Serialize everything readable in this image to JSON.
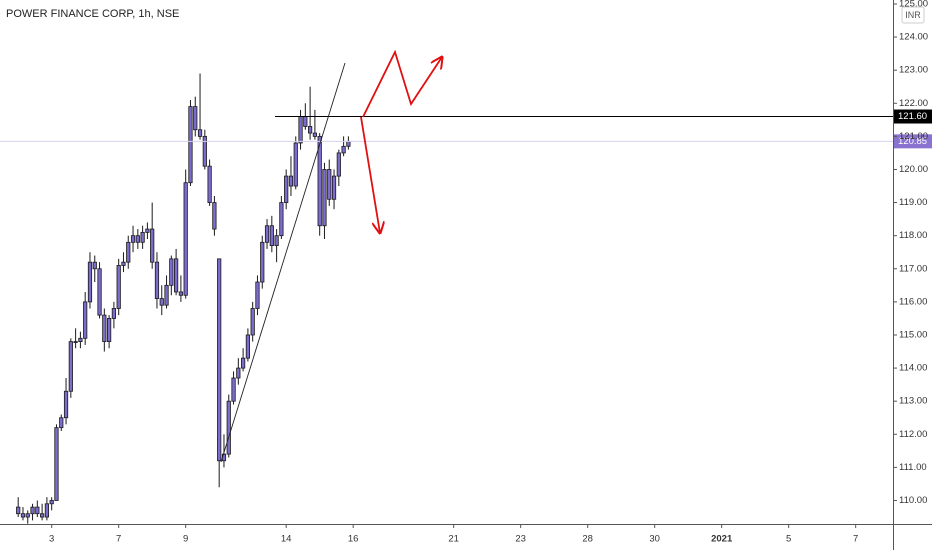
{
  "chart_data": {
    "type": "candlestick",
    "title": "POWER FINANCE CORP, 1h, NSE",
    "currency": "INR",
    "color": "#7e6ccc",
    "border_color": "#1a1a1a",
    "grid": false,
    "open": [
      109.8,
      109.6,
      109.5,
      109.6,
      109.8,
      109.6,
      109.5,
      109.9,
      110.0,
      112.2,
      112.5,
      113.3,
      114.8,
      114.8,
      114.9,
      116.0,
      117.2,
      117.0,
      115.6,
      114.8,
      115.5,
      115.8,
      117.1,
      117.2,
      117.8,
      118.0,
      117.8,
      118.1,
      118.2,
      117.2,
      116.1,
      115.9,
      116.5,
      117.3,
      116.3,
      116.2,
      119.6,
      121.9,
      121.2,
      121.0,
      120.1,
      119.0,
      117.3,
      111.2,
      111.4,
      113.0,
      113.7,
      114.0,
      114.3,
      115.0,
      115.8,
      116.6,
      117.8,
      118.3,
      117.7,
      118.0,
      119.0,
      119.8,
      119.5,
      120.8,
      121.6,
      121.3,
      121.1,
      121.0,
      118.3,
      120.0,
      119.1,
      119.8,
      120.5,
      120.7
    ],
    "high": [
      110.1,
      109.8,
      109.7,
      109.9,
      110.0,
      109.9,
      110.1,
      110.1,
      112.3,
      112.6,
      113.7,
      114.9,
      115.2,
      115.1,
      116.3,
      117.5,
      117.4,
      117.2,
      115.8,
      115.6,
      116.0,
      117.3,
      117.5,
      118.0,
      118.3,
      118.2,
      118.3,
      118.4,
      119.0,
      117.5,
      116.5,
      116.8,
      117.4,
      117.6,
      116.8,
      120.0,
      122.1,
      122.2,
      122.9,
      121.2,
      120.3,
      119.2,
      117.3,
      112.0,
      113.2,
      113.9,
      114.3,
      114.6,
      115.2,
      116.0,
      116.8,
      118.0,
      118.5,
      118.6,
      118.2,
      119.2,
      120.0,
      120.4,
      121.0,
      121.8,
      122.0,
      122.5,
      121.8,
      121.1,
      120.2,
      120.3,
      120.0,
      120.6,
      121.0,
      121.0
    ],
    "low": [
      109.5,
      109.4,
      109.3,
      109.4,
      109.5,
      109.4,
      109.4,
      109.7,
      110.0,
      112.1,
      112.3,
      113.1,
      114.6,
      114.6,
      114.7,
      115.8,
      116.6,
      115.5,
      114.5,
      114.6,
      115.2,
      115.6,
      116.9,
      117.0,
      117.5,
      117.6,
      117.6,
      117.9,
      117.0,
      115.8,
      115.6,
      115.8,
      116.2,
      116.2,
      116.0,
      116.1,
      119.5,
      121.0,
      120.9,
      120.0,
      118.9,
      118.0,
      110.4,
      111.0,
      111.3,
      112.9,
      113.5,
      113.9,
      114.2,
      114.8,
      115.6,
      116.4,
      117.6,
      117.5,
      117.2,
      117.9,
      118.8,
      119.2,
      119.4,
      120.6,
      121.2,
      120.9,
      120.9,
      118.0,
      117.9,
      118.9,
      118.8,
      119.5,
      120.4,
      120.6
    ],
    "close": [
      109.6,
      109.5,
      109.6,
      109.8,
      109.6,
      109.5,
      109.9,
      110.0,
      112.2,
      112.5,
      113.3,
      114.8,
      114.8,
      114.9,
      116.0,
      117.2,
      117.0,
      115.6,
      114.8,
      115.5,
      115.8,
      117.1,
      117.2,
      117.8,
      118.0,
      117.8,
      118.1,
      118.2,
      117.2,
      116.1,
      115.9,
      116.5,
      117.3,
      116.3,
      116.2,
      119.6,
      121.9,
      121.2,
      121.0,
      120.1,
      119.0,
      118.2,
      111.2,
      111.4,
      113.0,
      113.7,
      114.0,
      114.3,
      115.0,
      115.8,
      116.6,
      117.8,
      118.3,
      117.7,
      118.0,
      119.0,
      119.8,
      119.5,
      120.8,
      121.6,
      121.3,
      121.1,
      121.0,
      118.3,
      120.0,
      119.1,
      119.8,
      120.5,
      120.7,
      120.85
    ],
    "ylim": [
      109.35,
      125.12
    ],
    "yticks": [
      {
        "value": 110,
        "label": "110.00"
      },
      {
        "value": 111,
        "label": "111.00"
      },
      {
        "value": 112,
        "label": "112.00"
      },
      {
        "value": 113,
        "label": "113.00"
      },
      {
        "value": 114,
        "label": "114.00"
      },
      {
        "value": 115,
        "label": "115.00"
      },
      {
        "value": 116,
        "label": "116.00"
      },
      {
        "value": 117,
        "label": "117.00"
      },
      {
        "value": 118,
        "label": "118.00"
      },
      {
        "value": 119,
        "label": "119.00"
      },
      {
        "value": 120,
        "label": "120.00"
      },
      {
        "value": 121,
        "label": "121.00"
      },
      {
        "value": 122,
        "label": "122.00"
      },
      {
        "value": 123,
        "label": "123.00"
      },
      {
        "value": 124,
        "label": "124.00"
      },
      {
        "value": 125,
        "label": "125.00"
      }
    ],
    "xlim": [
      -3.8,
      182.8
    ],
    "xticks": [
      {
        "value": 7,
        "label": "3"
      },
      {
        "value": 21,
        "label": "7"
      },
      {
        "value": 35,
        "label": "9"
      },
      {
        "value": 56,
        "label": "14"
      },
      {
        "value": 70,
        "label": "16"
      },
      {
        "value": 91,
        "label": "21"
      },
      {
        "value": 105,
        "label": "23"
      },
      {
        "value": 119,
        "label": "28"
      },
      {
        "value": 133,
        "label": "30"
      },
      {
        "value": 147,
        "label": "2021"
      },
      {
        "value": 161,
        "label": "5"
      },
      {
        "value": 175,
        "label": "7"
      }
    ],
    "hline": {
      "value": 121.6,
      "label": "121.60",
      "color": "#000000"
    },
    "last_price": {
      "value": 120.85,
      "label": "120.85",
      "color": "#8a72d0"
    }
  }
}
